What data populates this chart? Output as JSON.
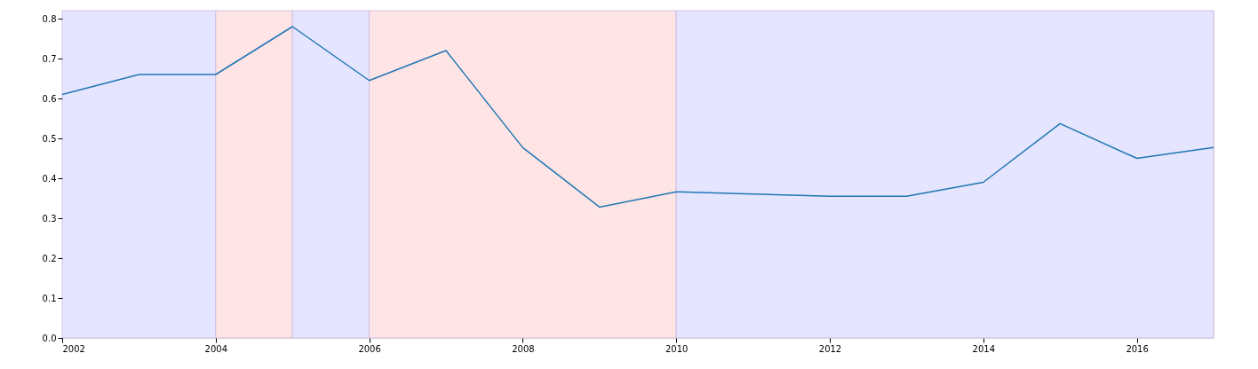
{
  "chart_data": {
    "type": "line",
    "x": [
      2002,
      2003,
      2004,
      2005,
      2006,
      2007,
      2008,
      2009,
      2010,
      2012,
      2013,
      2014,
      2015,
      2016,
      2017
    ],
    "series": [
      {
        "color": "#1f77b4",
        "values": [
          0.61,
          0.66,
          0.66,
          0.78,
          0.645,
          0.72,
          0.477,
          0.328,
          0.366,
          0.355,
          0.355,
          0.39,
          0.537,
          0.45,
          0.477
        ]
      }
    ],
    "xlim": [
      2002,
      2017
    ],
    "xticks": [
      2002,
      2004,
      2006,
      2008,
      2010,
      2012,
      2014,
      2016
    ],
    "ylim": [
      0,
      0.82
    ],
    "yticks": [
      {
        "value": 0,
        "label": "0.0"
      },
      0.1,
      0.2,
      0.3,
      0.4,
      0.5,
      0.6,
      0.7,
      0.8
    ],
    "bands": [
      {
        "axis": "x",
        "from": 2002,
        "to": 2004,
        "color": "#e5e5ff"
      },
      {
        "axis": "x",
        "from": 2004,
        "to": 2005,
        "color": "#ffe4e6"
      },
      {
        "axis": "x",
        "from": 2005,
        "to": 2006,
        "color": "#e5e5ff"
      },
      {
        "axis": "x",
        "from": 2006,
        "to": 2010,
        "color": "#ffe4e6"
      },
      {
        "axis": "x",
        "from": 2010,
        "to": 2017,
        "color": "#e5e5ff"
      }
    ],
    "grid": false,
    "marker": "none",
    "line_style": "solid"
  }
}
